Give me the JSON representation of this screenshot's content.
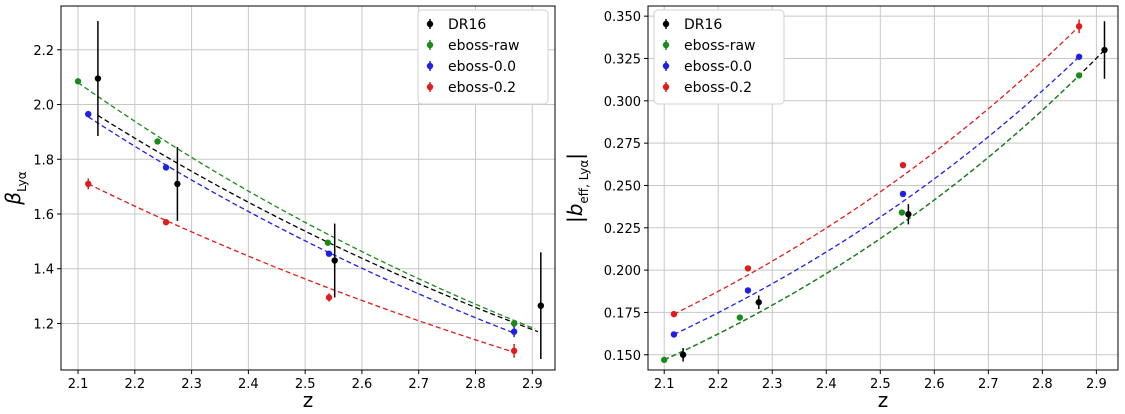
{
  "chart_data": [
    {
      "type": "scatter",
      "xlabel": "z",
      "ylabel": "β_Lyα",
      "xlim": [
        2.07,
        2.94
      ],
      "ylim": [
        1.03,
        2.36
      ],
      "xticks": [
        "2.1",
        "2.2",
        "2.3",
        "2.4",
        "2.5",
        "2.6",
        "2.7",
        "2.8",
        "2.9"
      ],
      "yticks": [
        "1.2",
        "1.4",
        "1.6",
        "1.8",
        "2.0",
        "2.2"
      ],
      "grid": true,
      "legend_position": "top-right",
      "series": [
        {
          "name": "DR16",
          "color": "#000000",
          "points": [
            {
              "x": 2.135,
              "y": 2.095,
              "err": 0.21
            },
            {
              "x": 2.275,
              "y": 1.71,
              "err": 0.135
            },
            {
              "x": 2.552,
              "y": 1.43,
              "err": 0.135
            },
            {
              "x": 2.915,
              "y": 1.265,
              "err": 0.195
            }
          ],
          "fit": {
            "x0": 2.135,
            "x1": 2.91,
            "y0": 1.96,
            "y1": 1.17
          }
        },
        {
          "name": "eboss-raw",
          "color": "#1a8a1a",
          "points": [
            {
              "x": 2.1,
              "y": 2.085,
              "err": 0.0
            },
            {
              "x": 2.24,
              "y": 1.865,
              "err": 0.0
            },
            {
              "x": 2.54,
              "y": 1.495,
              "err": 0.01
            },
            {
              "x": 2.868,
              "y": 1.2,
              "err": 0.01
            }
          ],
          "fit": {
            "x0": 2.1,
            "x1": 2.905,
            "y0": 2.08,
            "y1": 1.18
          }
        },
        {
          "name": "eboss-0.0",
          "color": "#1f1fe6",
          "points": [
            {
              "x": 2.118,
              "y": 1.965,
              "err": 0.01
            },
            {
              "x": 2.255,
              "y": 1.77,
              "err": 0.0
            },
            {
              "x": 2.542,
              "y": 1.455,
              "err": 0.0
            },
            {
              "x": 2.868,
              "y": 1.17,
              "err": 0.02
            }
          ],
          "fit": {
            "x0": 2.118,
            "x1": 2.868,
            "y0": 1.955,
            "y1": 1.165
          }
        },
        {
          "name": "eboss-0.2",
          "color": "#e01c1c",
          "points": [
            {
              "x": 2.118,
              "y": 1.71,
              "err": 0.02
            },
            {
              "x": 2.255,
              "y": 1.57,
              "err": 0.01
            },
            {
              "x": 2.542,
              "y": 1.295,
              "err": 0.015
            },
            {
              "x": 2.868,
              "y": 1.1,
              "err": 0.025
            }
          ],
          "fit": {
            "x0": 2.118,
            "x1": 2.868,
            "y0": 1.71,
            "y1": 1.095
          }
        }
      ]
    },
    {
      "type": "scatter",
      "xlabel": "z",
      "ylabel": "|b_eff, Lyα|",
      "xlim": [
        2.07,
        2.94
      ],
      "ylim": [
        0.141,
        0.356
      ],
      "xticks": [
        "2.1",
        "2.2",
        "2.3",
        "2.4",
        "2.5",
        "2.6",
        "2.7",
        "2.8",
        "2.9"
      ],
      "yticks": [
        "0.150",
        "0.175",
        "0.200",
        "0.225",
        "0.250",
        "0.275",
        "0.300",
        "0.325",
        "0.350"
      ],
      "grid": true,
      "legend_position": "top-left",
      "series": [
        {
          "name": "DR16",
          "color": "#000000",
          "points": [
            {
              "x": 2.135,
              "y": 0.15,
              "err": 0.004
            },
            {
              "x": 2.275,
              "y": 0.181,
              "err": 0.004
            },
            {
              "x": 2.552,
              "y": 0.233,
              "err": 0.006
            },
            {
              "x": 2.915,
              "y": 0.33,
              "err": 0.017
            }
          ],
          "fit": {
            "x0": 2.1,
            "x1": 2.915,
            "y0": 0.147,
            "y1": 0.33
          }
        },
        {
          "name": "eboss-raw",
          "color": "#1a8a1a",
          "points": [
            {
              "x": 2.1,
              "y": 0.147,
              "err": 0.0
            },
            {
              "x": 2.24,
              "y": 0.172,
              "err": 0.0
            },
            {
              "x": 2.54,
              "y": 0.234,
              "err": 0.0
            },
            {
              "x": 2.868,
              "y": 0.315,
              "err": 0.001
            }
          ],
          "fit": {
            "x0": 2.1,
            "x1": 2.868,
            "y0": 0.147,
            "y1": 0.315
          }
        },
        {
          "name": "eboss-0.0",
          "color": "#1f1fe6",
          "points": [
            {
              "x": 2.118,
              "y": 0.162,
              "err": 0.0
            },
            {
              "x": 2.255,
              "y": 0.188,
              "err": 0.0
            },
            {
              "x": 2.542,
              "y": 0.245,
              "err": 0.0
            },
            {
              "x": 2.868,
              "y": 0.326,
              "err": 0.001
            }
          ],
          "fit": {
            "x0": 2.118,
            "x1": 2.868,
            "y0": 0.162,
            "y1": 0.326
          }
        },
        {
          "name": "eboss-0.2",
          "color": "#e01c1c",
          "points": [
            {
              "x": 2.118,
              "y": 0.174,
              "err": 0.0
            },
            {
              "x": 2.255,
              "y": 0.201,
              "err": 0.0
            },
            {
              "x": 2.542,
              "y": 0.262,
              "err": 0.0
            },
            {
              "x": 2.868,
              "y": 0.344,
              "err": 0.004
            }
          ],
          "fit": {
            "x0": 2.118,
            "x1": 2.868,
            "y0": 0.174,
            "y1": 0.344
          }
        }
      ]
    }
  ]
}
